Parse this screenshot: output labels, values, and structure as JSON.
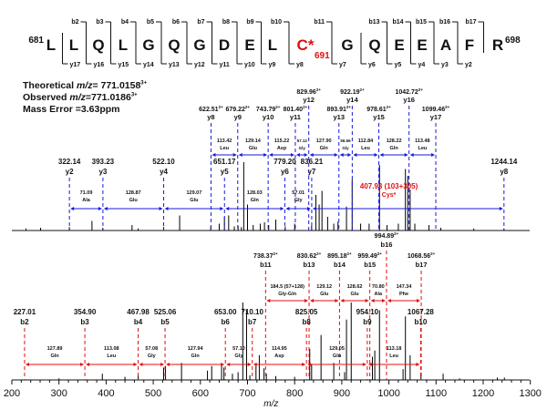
{
  "sequence": {
    "start_label": "681",
    "end_label": "698",
    "residues": [
      "L",
      "L",
      "Q",
      "L",
      "G",
      "Q",
      "G",
      "D",
      "E",
      "L",
      "C*",
      "G",
      "Q",
      "E",
      "E",
      "A",
      "F",
      "R"
    ],
    "modified_index": 10,
    "modified_label": "691",
    "b_ions": [
      null,
      "b2",
      "b3",
      "b4",
      "b5",
      "b6",
      "b7",
      "b8",
      "b9",
      "b10",
      "b11",
      null,
      "b13",
      "b14",
      "b15",
      "b16",
      "b17"
    ],
    "y_ions": [
      "y17",
      "y16",
      "y15",
      "y14",
      "y13",
      "y12",
      "y11",
      "y10",
      "y9",
      "y8",
      "y7",
      "y6",
      "y5",
      "y4",
      "y3",
      "y2",
      null
    ]
  },
  "info": {
    "theoretical_label": "Theoretical ",
    "theoretical_mz": "m/z",
    "theoretical_value": "= 771.0158",
    "theoretical_charge": "3+",
    "observed_label": "Observed ",
    "observed_mz": "m/z",
    "observed_value": "=771.0186",
    "observed_charge": "3+",
    "mass_error": "Mass Error =3.63ppm"
  },
  "chart_data": {
    "type": "bar",
    "title": "",
    "xlabel": "m/z",
    "ylabel": "",
    "xlim": [
      200,
      1300
    ],
    "xticks": [
      200,
      300,
      400,
      500,
      600,
      700,
      800,
      900,
      1000,
      1100,
      1200,
      1300
    ],
    "colors": {
      "y_series": "#1a1adc",
      "b_series": "#e01010",
      "highlight": "#e01010",
      "peak": "#000000"
    },
    "panels": [
      {
        "name": "y-ions",
        "ions_doubly": [
          {
            "label": "y8",
            "mz": 622.51,
            "text": "622.51",
            "charge": "2+"
          },
          {
            "label": "y9",
            "mz": 679.22,
            "text": "679.22",
            "charge": "2+"
          },
          {
            "label": "y10",
            "mz": 743.79,
            "text": "743.79",
            "charge": "2+"
          },
          {
            "label": "y11",
            "mz": 801.4,
            "text": "801.40",
            "charge": "2+"
          },
          {
            "label": "y12",
            "mz": 829.96,
            "text": "829.96",
            "charge": "2+"
          },
          {
            "label": "y13",
            "mz": 893.91,
            "text": "893.91",
            "charge": "2+"
          },
          {
            "label": "y14",
            "mz": 922.19,
            "text": "922.19",
            "charge": "2+"
          },
          {
            "label": "y15",
            "mz": 978.61,
            "text": "978.61",
            "charge": "2+"
          },
          {
            "label": "y16",
            "mz": 1042.72,
            "text": "1042.72",
            "charge": "2+"
          },
          {
            "label": "y17",
            "mz": 1099.46,
            "text": "1099.46",
            "charge": "2+"
          }
        ],
        "intervals_doubly": [
          {
            "from": 622.51,
            "to": 679.22,
            "mass": "113.42",
            "aa": "Leu"
          },
          {
            "from": 679.22,
            "to": 743.79,
            "mass": "129.14",
            "aa": "Glu"
          },
          {
            "from": 743.79,
            "to": 801.4,
            "mass": "115.22",
            "aa": "Asp"
          },
          {
            "from": 801.4,
            "to": 829.96,
            "mass": "57.12",
            "aa": "Gly"
          },
          {
            "from": 829.96,
            "to": 893.91,
            "mass": "127.90",
            "aa": "Gln"
          },
          {
            "from": 893.91,
            "to": 922.19,
            "mass": "56.56",
            "aa": "Gly"
          },
          {
            "from": 922.19,
            "to": 978.61,
            "mass": "112.84",
            "aa": "Leu"
          },
          {
            "from": 978.61,
            "to": 1042.72,
            "mass": "128.22",
            "aa": "Gln"
          },
          {
            "from": 1042.72,
            "to": 1099.46,
            "mass": "113.48",
            "aa": "Leu"
          }
        ],
        "ions_singly": [
          {
            "label": "y2",
            "mz": 322.14,
            "text": "322.14"
          },
          {
            "label": "y3",
            "mz": 393.23,
            "text": "393.23"
          },
          {
            "label": "y4",
            "mz": 522.1,
            "text": "522.10"
          },
          {
            "label": "y5",
            "mz": 651.17,
            "text": "651.17"
          },
          {
            "label": "y6",
            "mz": 779.2,
            "text": "779.20"
          },
          {
            "label": "y7",
            "mz": 836.21,
            "text": "836.21"
          },
          {
            "label": "y8",
            "mz": 1244.14,
            "text": "1244.14"
          }
        ],
        "intervals_singly": [
          {
            "from": 322.14,
            "to": 393.23,
            "mass": "71.09",
            "aa": "Ala"
          },
          {
            "from": 393.23,
            "to": 522.1,
            "mass": "128.87",
            "aa": "Glu"
          },
          {
            "from": 522.1,
            "to": 651.17,
            "mass": "129.07",
            "aa": "Glu"
          },
          {
            "from": 651.17,
            "to": 779.2,
            "mass": "128.03",
            "aa": "Gln"
          },
          {
            "from": 779.2,
            "to": 836.21,
            "mass": "57.01",
            "aa": "Gly"
          },
          {
            "from": 836.21,
            "to": 1244.14,
            "mass": "407.93 (103+305)",
            "aa": "Cys*",
            "highlight": true
          }
        ],
        "peaks": [
          [
            230,
            3
          ],
          [
            261,
            4
          ],
          [
            322,
            5
          ],
          [
            370,
            14
          ],
          [
            393,
            4
          ],
          [
            455,
            8
          ],
          [
            468,
            3
          ],
          [
            522,
            5
          ],
          [
            556,
            22
          ],
          [
            622,
            6
          ],
          [
            640,
            10
          ],
          [
            651,
            20
          ],
          [
            660,
            22
          ],
          [
            672,
            6
          ],
          [
            680,
            7
          ],
          [
            687,
            5
          ],
          [
            692,
            100
          ],
          [
            700,
            38
          ],
          [
            712,
            8
          ],
          [
            727,
            10
          ],
          [
            736,
            12
          ],
          [
            745,
            8
          ],
          [
            760,
            16
          ],
          [
            780,
            6
          ],
          [
            800,
            10
          ],
          [
            836,
            7
          ],
          [
            845,
            52
          ],
          [
            852,
            38
          ],
          [
            858,
            58
          ],
          [
            870,
            20
          ],
          [
            883,
            10
          ],
          [
            892,
            13
          ],
          [
            910,
            35
          ],
          [
            922,
            75
          ],
          [
            940,
            10
          ],
          [
            958,
            10
          ],
          [
            980,
            96
          ],
          [
            996,
            8
          ],
          [
            1020,
            10
          ],
          [
            1035,
            90
          ],
          [
            1040,
            80
          ],
          [
            1045,
            60
          ],
          [
            1055,
            10
          ],
          [
            1085,
            8
          ],
          [
            1110,
            4
          ],
          [
            1180,
            3
          ],
          [
            1244,
            3
          ]
        ]
      },
      {
        "name": "b-ions",
        "ions_doubly": [
          {
            "label": "b11",
            "mz": 738.37,
            "text": "738.37",
            "charge": "2+"
          },
          {
            "label": "b13",
            "mz": 830.62,
            "text": "830.62",
            "charge": "2+"
          },
          {
            "label": "b14",
            "mz": 895.18,
            "text": "895.18",
            "charge": "2+"
          },
          {
            "label": "b15",
            "mz": 959.49,
            "text": "959.49",
            "charge": "2+"
          },
          {
            "label": "b16",
            "mz": 994.89,
            "text": "994.89",
            "charge": "2+"
          },
          {
            "label": "b17",
            "mz": 1068.56,
            "text": "1068.56",
            "charge": "2+"
          }
        ],
        "intervals_doubly": [
          {
            "from": 738.37,
            "to": 830.62,
            "mass": "184.5 (57+128)",
            "aa": "Gly-Gln"
          },
          {
            "from": 830.62,
            "to": 895.18,
            "mass": "129.12",
            "aa": "Glu"
          },
          {
            "from": 895.18,
            "to": 959.49,
            "mass": "128.62",
            "aa": "Glu"
          },
          {
            "from": 959.49,
            "to": 994.89,
            "mass": "70.80",
            "aa": "Ala"
          },
          {
            "from": 994.89,
            "to": 1068.56,
            "mass": "147.34",
            "aa": "Phe"
          }
        ],
        "ions_singly": [
          {
            "label": "b2",
            "mz": 227.01,
            "text": "227.01"
          },
          {
            "label": "b3",
            "mz": 354.9,
            "text": "354.90"
          },
          {
            "label": "b4",
            "mz": 467.98,
            "text": "467.98"
          },
          {
            "label": "b5",
            "mz": 525.06,
            "text": "525.06"
          },
          {
            "label": "b6",
            "mz": 653.0,
            "text": "653.00"
          },
          {
            "label": "b7",
            "mz": 710.1,
            "text": "710.10"
          },
          {
            "label": "b8",
            "mz": 825.05,
            "text": "825.05"
          },
          {
            "label": "b9",
            "mz": 954.1,
            "text": "954.10"
          },
          {
            "label": "b10",
            "mz": 1067.28,
            "text": "1067.28"
          }
        ],
        "intervals_singly": [
          {
            "from": 227.01,
            "to": 354.9,
            "mass": "127.89",
            "aa": "Gln"
          },
          {
            "from": 354.9,
            "to": 467.98,
            "mass": "113.08",
            "aa": "Leu"
          },
          {
            "from": 467.98,
            "to": 525.06,
            "mass": "57.08",
            "aa": "Gly"
          },
          {
            "from": 525.06,
            "to": 653.0,
            "mass": "127.94",
            "aa": "Gln"
          },
          {
            "from": 653.0,
            "to": 710.1,
            "mass": "57.10",
            "aa": "Gly"
          },
          {
            "from": 710.1,
            "to": 825.05,
            "mass": "114.95",
            "aa": "Asp"
          },
          {
            "from": 825.05,
            "to": 954.1,
            "mass": "129.05",
            "aa": "Glu"
          },
          {
            "from": 954.1,
            "to": 1067.28,
            "mass": "113.18",
            "aa": "Leu"
          }
        ],
        "peaks": [
          [
            300,
            2
          ],
          [
            392,
            8
          ],
          [
            440,
            4
          ],
          [
            468,
            6
          ],
          [
            522,
            16
          ],
          [
            526,
            18
          ],
          [
            560,
            22
          ],
          [
            615,
            12
          ],
          [
            624,
            18
          ],
          [
            645,
            20
          ],
          [
            650,
            16
          ],
          [
            668,
            8
          ],
          [
            680,
            10
          ],
          [
            690,
            100
          ],
          [
            698,
            90
          ],
          [
            705,
            6
          ],
          [
            718,
            18
          ],
          [
            725,
            32
          ],
          [
            735,
            15
          ],
          [
            740,
            8
          ],
          [
            760,
            5
          ],
          [
            800,
            4
          ],
          [
            832,
            40
          ],
          [
            836,
            20
          ],
          [
            856,
            58
          ],
          [
            883,
            22
          ],
          [
            906,
            10
          ],
          [
            910,
            78
          ],
          [
            920,
            100
          ],
          [
            965,
            30
          ],
          [
            970,
            38
          ],
          [
            980,
            90
          ],
          [
            1030,
            14
          ],
          [
            1035,
            82
          ],
          [
            1045,
            32
          ],
          [
            1068,
            8
          ],
          [
            1115,
            8
          ],
          [
            1150,
            2
          ],
          [
            1230,
            3
          ],
          [
            1245,
            3
          ]
        ]
      }
    ]
  }
}
